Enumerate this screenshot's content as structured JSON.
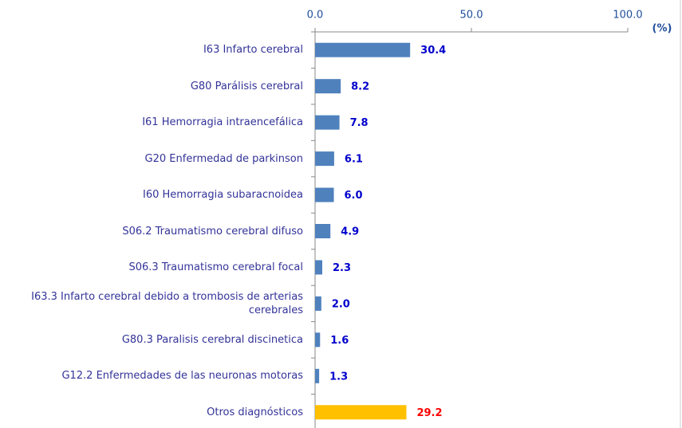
{
  "chart_data": {
    "type": "bar",
    "orientation": "horizontal",
    "unit_label": "(%)",
    "categories": [
      "I63  Infarto cerebral",
      "G80  Parálisis cerebral",
      "I61  Hemorragia intraencefálica",
      "G20  Enfermedad de parkinson",
      "I60  Hemorragia subaracnoidea",
      "S06.2  Traumatismo cerebral difuso",
      "S06.3  Traumatismo cerebral focal",
      "I63.3  Infarto cerebral debido a trombosis de arterias cerebrales",
      "G80.3  Paralisis cerebral discinetica",
      "G12.2  Enfermedades de las neuronas motoras",
      "Otros diagnósticos"
    ],
    "values": [
      30.4,
      8.2,
      7.8,
      6.1,
      6.0,
      4.9,
      2.3,
      2.0,
      1.6,
      1.3,
      29.2
    ],
    "value_labels": [
      "30.4",
      "8.2",
      "7.8",
      "6.1",
      "6.0",
      "4.9",
      "2.3",
      "2.0",
      "1.6",
      "1.3",
      "29.2"
    ],
    "colors": [
      "#4f81bd",
      "#4f81bd",
      "#4f81bd",
      "#4f81bd",
      "#4f81bd",
      "#4f81bd",
      "#4f81bd",
      "#4f81bd",
      "#4f81bd",
      "#4f81bd",
      "#ffc000"
    ],
    "label_colors": [
      "#0000cc",
      "#0000cc",
      "#0000cc",
      "#0000cc",
      "#0000cc",
      "#0000cc",
      "#0000cc",
      "#0000cc",
      "#0000cc",
      "#0000cc",
      "#ff0000"
    ],
    "xlim": [
      0,
      100
    ],
    "xticks": [
      {
        "value": 0,
        "label": "0.0"
      },
      {
        "value": 50,
        "label": "50.0"
      },
      {
        "value": 100,
        "label": "100.0"
      }
    ]
  }
}
